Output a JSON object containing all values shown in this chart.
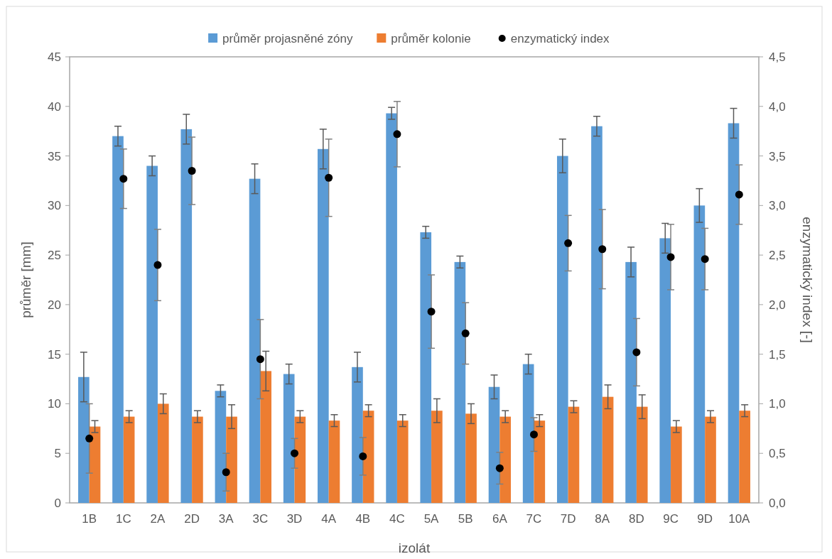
{
  "chart_data": {
    "type": "bar",
    "xlabel": "izolát",
    "ylabel": "průměr [mm]",
    "y2label": "enzymatický index [-]",
    "categories": [
      "1B",
      "1C",
      "2A",
      "2D",
      "3A",
      "3C",
      "3D",
      "4A",
      "4B",
      "4C",
      "5A",
      "5B",
      "6A",
      "7C",
      "7D",
      "8A",
      "8D",
      "9C",
      "9D",
      "10A"
    ],
    "series": [
      {
        "name": "průměr projasněné zóny",
        "color": "#5b9bd5",
        "values": [
          12.7,
          37,
          34,
          37.7,
          11.3,
          32.7,
          13,
          35.7,
          13.7,
          39.3,
          27.3,
          24.3,
          11.7,
          14,
          35,
          38,
          24.3,
          26.7,
          30,
          38.3
        ],
        "errors": [
          2.5,
          1,
          1,
          1.5,
          0.6,
          1.5,
          1,
          2,
          1.5,
          0.6,
          0.6,
          0.6,
          1.2,
          1,
          1.7,
          1,
          1.5,
          1.5,
          1.7,
          1.5
        ]
      },
      {
        "name": "průměr kolonie",
        "color": "#ed7d31",
        "values": [
          7.7,
          8.7,
          10,
          8.7,
          8.7,
          13.3,
          8.7,
          8.3,
          9.3,
          8.3,
          9.3,
          9,
          8.7,
          8.3,
          9.7,
          10.7,
          9.7,
          7.7,
          8.7,
          9.3
        ],
        "errors": [
          0.6,
          0.6,
          1,
          0.6,
          1.2,
          2,
          0.6,
          0.6,
          0.6,
          0.6,
          1.2,
          1,
          0.6,
          0.6,
          0.6,
          1.2,
          1.2,
          0.6,
          0.6,
          0.6
        ]
      },
      {
        "name": "enzymatický index",
        "type": "scatter",
        "axis": "y2",
        "color": "#000000",
        "marker": "circle",
        "x": [
          "1B",
          "1C",
          "2A",
          "2D",
          "3A",
          "3C",
          "3D",
          "4A",
          "4B",
          "4C",
          "5A",
          "5B",
          "6A",
          "7C",
          "7D",
          "8A",
          "8D",
          "9C",
          "9D",
          "10A"
        ],
        "values": [
          0.65,
          3.27,
          2.4,
          3.35,
          0.31,
          1.45,
          0.5,
          3.28,
          0.47,
          3.72,
          1.93,
          1.71,
          0.35,
          0.69,
          2.62,
          2.56,
          1.52,
          2.48,
          2.46,
          3.11
        ],
        "errors": [
          0.35,
          0.3,
          0.36,
          0.34,
          0.19,
          0.4,
          0.15,
          0.39,
          0.19,
          0.33,
          0.37,
          0.31,
          0.16,
          0.17,
          0.28,
          0.4,
          0.34,
          0.33,
          0.31,
          0.3
        ]
      }
    ],
    "ylim": [
      0,
      45
    ],
    "yticks": [
      0,
      5,
      10,
      15,
      20,
      25,
      30,
      35,
      40,
      45
    ],
    "y2lim": [
      0,
      4.5
    ],
    "y2ticks": [
      {
        "value": 0,
        "label": "0,0"
      },
      {
        "value": 0.5,
        "label": "0,5"
      },
      {
        "value": 1,
        "label": "1,0"
      },
      {
        "value": 1.5,
        "label": "1,5"
      },
      {
        "value": 2,
        "label": "2,0"
      },
      {
        "value": 2.5,
        "label": "2,5"
      },
      {
        "value": 3,
        "label": "3,0"
      },
      {
        "value": 3.5,
        "label": "3,5"
      },
      {
        "value": 4,
        "label": "4,0"
      },
      {
        "value": 4.5,
        "label": "4,5"
      }
    ],
    "legend": "top"
  }
}
